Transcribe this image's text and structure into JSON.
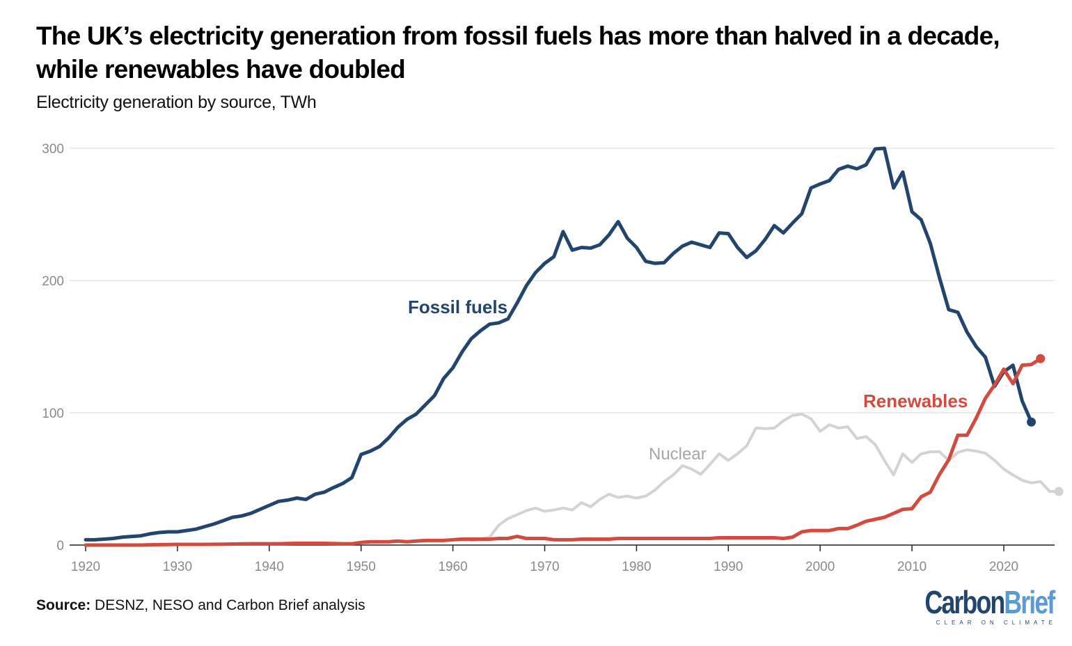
{
  "header": {
    "title": "The UK’s electricity generation from fossil fuels has more than halved in a decade, while renewables have doubled",
    "subtitle": "Electricity generation by source, TWh"
  },
  "footer": {
    "source_label": "Source:",
    "source_text": "DESNZ, NESO and Carbon Brief analysis",
    "logo_carbon": "Carbon",
    "logo_brief": "Brief",
    "logo_tagline": "CLEAR ON CLIMATE"
  },
  "colors": {
    "fossil": "#22456e",
    "renewables": "#d24b3e",
    "nuclear": "#d3d3d3",
    "grid": "#e6e6e6",
    "axis": "#222222"
  },
  "chart_data": {
    "type": "line",
    "title": "The UK’s electricity generation from fossil fuels has more than halved in a decade, while renewables have doubled",
    "subtitle": "Electricity generation by source, TWh",
    "xlabel": "",
    "ylabel": "TWh",
    "x_start": 1920,
    "x_end": 2024,
    "xlim": [
      1920,
      2024
    ],
    "ylim": [
      0,
      300
    ],
    "x_ticks": [
      1920,
      1930,
      1940,
      1950,
      1960,
      1970,
      1980,
      1990,
      2000,
      2010,
      2020
    ],
    "y_ticks": [
      0,
      100,
      200,
      300
    ],
    "grid": true,
    "legend": "inline labels",
    "series": [
      {
        "name": "Fossil fuels",
        "label": "Fossil fuels",
        "color": "#22456e",
        "end_marker": true,
        "start_year": 1920,
        "values": [
          4,
          4,
          4.5,
          5,
          6,
          6.5,
          7,
          8.5,
          9.5,
          10,
          10,
          11,
          12,
          14,
          16,
          18.5,
          21,
          22,
          24,
          27,
          30,
          33,
          34,
          35.5,
          34.5,
          38.5,
          40,
          43.5,
          46.5,
          51,
          68.5,
          71,
          74.5,
          81,
          89,
          95,
          99,
          106,
          113,
          126,
          134,
          146,
          156,
          162,
          167,
          168,
          171,
          183,
          196,
          206,
          213,
          218,
          237,
          223,
          225,
          224.5,
          227,
          234.5,
          244.5,
          232,
          225,
          214.5,
          213,
          213.5,
          220.5,
          226,
          229,
          227,
          225,
          236,
          235.5,
          225,
          217.5,
          222.5,
          231,
          241.5,
          236,
          243.5,
          250.5,
          270,
          273,
          275.5,
          284,
          286.5,
          284.5,
          287.5,
          299.5,
          300,
          270,
          282,
          252,
          246,
          228,
          202,
          178,
          176,
          161,
          150,
          142,
          120,
          131,
          136,
          109,
          93
        ]
      },
      {
        "name": "Renewables",
        "label": "Renewables",
        "color": "#d24b3e",
        "end_marker": true,
        "start_year": 1920,
        "values": [
          0,
          0,
          0,
          0,
          0,
          0,
          0,
          0.2,
          0.3,
          0.4,
          0.5,
          0.5,
          0.5,
          0.5,
          0.6,
          0.7,
          0.8,
          0.9,
          1,
          1,
          1,
          1,
          1.2,
          1.3,
          1.3,
          1.3,
          1.3,
          1.2,
          1,
          1,
          2,
          2.5,
          2.5,
          2.5,
          3,
          2.5,
          3,
          3.5,
          3.5,
          3.5,
          4,
          4.5,
          4.5,
          4.5,
          4.5,
          5,
          5,
          6.5,
          5,
          5,
          5,
          4,
          4,
          4,
          4.5,
          4.5,
          4.5,
          4.5,
          5,
          5,
          5,
          5,
          5,
          5,
          5,
          5,
          5,
          5,
          5,
          5.5,
          5.5,
          5.5,
          5.5,
          5.5,
          5.5,
          5.5,
          5,
          6,
          10,
          11,
          11,
          11,
          12.5,
          12.5,
          15,
          18,
          19.5,
          21,
          24,
          27,
          27.5,
          36.5,
          40,
          53.5,
          64.5,
          83,
          83,
          96,
          111,
          121,
          133,
          122,
          136,
          136.5,
          141
        ]
      },
      {
        "name": "Nuclear",
        "label": "Nuclear",
        "color": "#d3d3d3",
        "end_marker": true,
        "start_year": 1962,
        "values": [
          3.5,
          4.5,
          6,
          15,
          20,
          23,
          26,
          28,
          25.5,
          26.5,
          28,
          26.5,
          32,
          29,
          34.5,
          38.5,
          36,
          37,
          35.5,
          37,
          41.5,
          48,
          53,
          60,
          57.5,
          53.5,
          61,
          69,
          64,
          69,
          75,
          88.5,
          88,
          88.5,
          94,
          98,
          99,
          95.5,
          86,
          91,
          88.5,
          89.5,
          80.5,
          82,
          76,
          64,
          53,
          69,
          62.5,
          69,
          70.5,
          70.5,
          64,
          70,
          72,
          71,
          69.5,
          64,
          57.5,
          53,
          49,
          47,
          48,
          40.5,
          40.5
        ]
      }
    ],
    "annotations": [
      {
        "text": "Fossil fuels",
        "series": "Fossil fuels",
        "near_year": 1961,
        "near_value": 180
      },
      {
        "text": "Renewables",
        "series": "Renewables",
        "near_year": 2007,
        "near_value": 108
      },
      {
        "text": "Nuclear",
        "series": "Nuclear",
        "near_year": 1984,
        "near_value": 68
      }
    ]
  }
}
